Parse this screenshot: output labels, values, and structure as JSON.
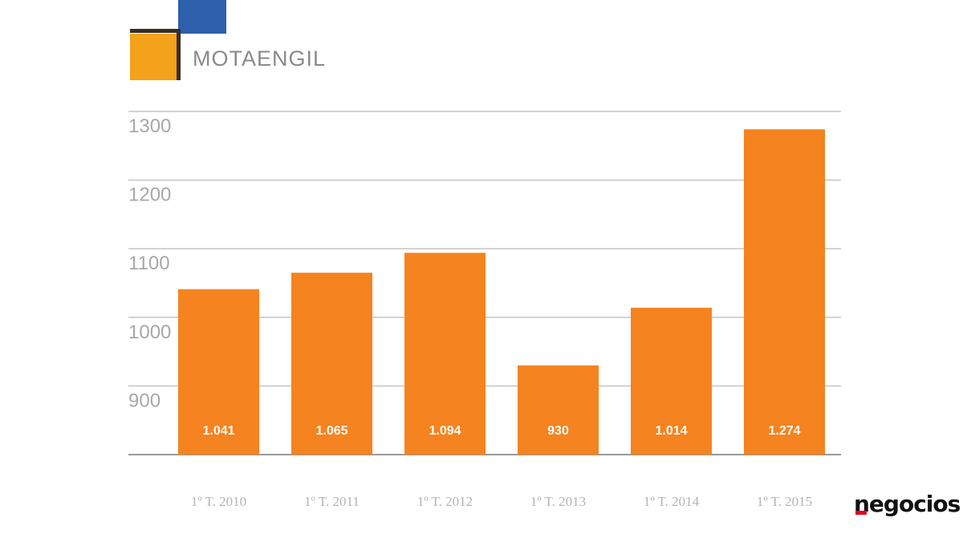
{
  "logo": {
    "text": "MOTAENGIL",
    "colors": {
      "blue": "#2e5fac",
      "orange": "#f4a21b",
      "dark": "#3a2e22"
    }
  },
  "brand": {
    "text": "negocios",
    "accent": "#e3001b"
  },
  "chart_data": {
    "type": "bar",
    "categories": [
      "1º T. 2010",
      "1º T. 2011",
      "1º T. 2012",
      "1º T. 2013",
      "1º T. 2014",
      "1º T. 2015"
    ],
    "values": [
      1041,
      1065,
      1094,
      930,
      1014,
      1274
    ],
    "data_labels": [
      "1.041",
      "1.065",
      "1.094",
      "930",
      "1.014",
      "1.274"
    ],
    "yticks": [
      900,
      1000,
      1100,
      1200,
      1300
    ],
    "ylim": [
      800,
      1300
    ],
    "grid": true,
    "bar_color": "#f5831f",
    "title": "",
    "xlabel": "",
    "ylabel": ""
  }
}
